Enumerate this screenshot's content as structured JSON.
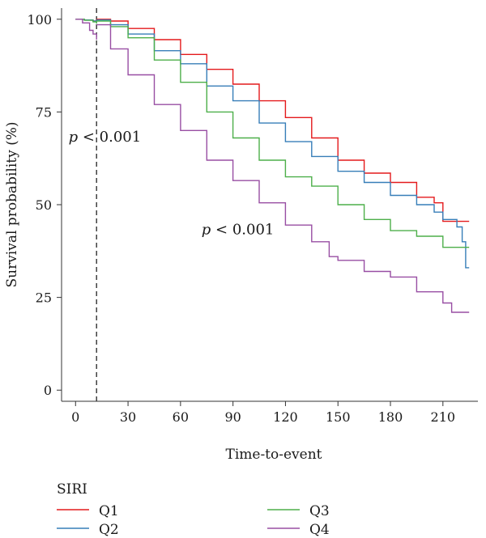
{
  "chart_data": {
    "type": "line",
    "step": true,
    "xlabel": "Time-to-event",
    "ylabel": "Survival probability (%)",
    "xlim": [
      -8,
      230
    ],
    "ylim": [
      -3,
      103
    ],
    "x_ticks": [
      0,
      30,
      60,
      90,
      120,
      150,
      180,
      210
    ],
    "y_ticks": [
      0,
      25,
      50,
      75,
      100
    ],
    "grid": false,
    "landmark_x": 12,
    "annotations": [
      {
        "text_p": "p",
        "text_rest": " < 0.001",
        "x": -4,
        "y": 67
      },
      {
        "text_p": "p",
        "text_rest": " < 0.001",
        "x": 72,
        "y": 42
      }
    ],
    "legend": {
      "title": "SIRI",
      "placement": "bottom"
    },
    "colors": {
      "Q1": "#e41a1c",
      "Q2": "#377eb8",
      "Q3": "#4daf4a",
      "Q4": "#984ea3"
    },
    "series": [
      {
        "name": "Q1",
        "color": "#e41a1c",
        "early": [
          [
            0,
            100
          ],
          [
            5,
            99.8
          ],
          [
            10,
            99.5
          ],
          [
            12,
            99.2
          ]
        ],
        "late": [
          [
            12,
            100
          ],
          [
            20,
            99.5
          ],
          [
            30,
            97.5
          ],
          [
            45,
            94.5
          ],
          [
            60,
            90.5
          ],
          [
            75,
            86.5
          ],
          [
            90,
            82.5
          ],
          [
            105,
            78
          ],
          [
            120,
            73.5
          ],
          [
            135,
            68
          ],
          [
            150,
            62
          ],
          [
            165,
            58.5
          ],
          [
            180,
            56
          ],
          [
            195,
            52
          ],
          [
            205,
            50.5
          ],
          [
            210,
            45.5
          ],
          [
            225,
            45.5
          ]
        ]
      },
      {
        "name": "Q2",
        "color": "#377eb8",
        "early": [
          [
            0,
            100
          ],
          [
            5,
            99.8
          ],
          [
            10,
            99.5
          ],
          [
            12,
            99
          ]
        ],
        "late": [
          [
            12,
            99.8
          ],
          [
            20,
            98.5
          ],
          [
            30,
            96
          ],
          [
            45,
            91.5
          ],
          [
            60,
            88
          ],
          [
            75,
            82
          ],
          [
            90,
            78
          ],
          [
            105,
            72
          ],
          [
            120,
            67
          ],
          [
            135,
            63
          ],
          [
            150,
            59
          ],
          [
            165,
            56
          ],
          [
            180,
            52.5
          ],
          [
            195,
            50
          ],
          [
            205,
            48
          ],
          [
            210,
            46
          ],
          [
            218,
            44
          ],
          [
            221,
            40
          ],
          [
            223,
            33
          ],
          [
            225,
            33
          ]
        ]
      },
      {
        "name": "Q3",
        "color": "#4daf4a",
        "early": [
          [
            0,
            100
          ],
          [
            5,
            99.7
          ],
          [
            10,
            99.3
          ],
          [
            12,
            98.8
          ]
        ],
        "late": [
          [
            12,
            99.5
          ],
          [
            20,
            98
          ],
          [
            30,
            95
          ],
          [
            45,
            89
          ],
          [
            60,
            83
          ],
          [
            75,
            75
          ],
          [
            90,
            68
          ],
          [
            105,
            62
          ],
          [
            120,
            57.5
          ],
          [
            135,
            55
          ],
          [
            150,
            50
          ],
          [
            165,
            46
          ],
          [
            180,
            43
          ],
          [
            195,
            41.5
          ],
          [
            210,
            38.5
          ],
          [
            225,
            38.5
          ]
        ]
      },
      {
        "name": "Q4",
        "color": "#984ea3",
        "early": [
          [
            0,
            100
          ],
          [
            4,
            99
          ],
          [
            8,
            97
          ],
          [
            10,
            96
          ],
          [
            12,
            94.5
          ]
        ],
        "late": [
          [
            12,
            98.5
          ],
          [
            20,
            92
          ],
          [
            30,
            85
          ],
          [
            45,
            77
          ],
          [
            60,
            70
          ],
          [
            75,
            62
          ],
          [
            90,
            56.5
          ],
          [
            105,
            50.5
          ],
          [
            120,
            44.5
          ],
          [
            135,
            40
          ],
          [
            145,
            36
          ],
          [
            150,
            35
          ],
          [
            165,
            32
          ],
          [
            180,
            30.5
          ],
          [
            195,
            26.5
          ],
          [
            210,
            23.5
          ],
          [
            215,
            21
          ],
          [
            225,
            21
          ]
        ]
      }
    ]
  }
}
